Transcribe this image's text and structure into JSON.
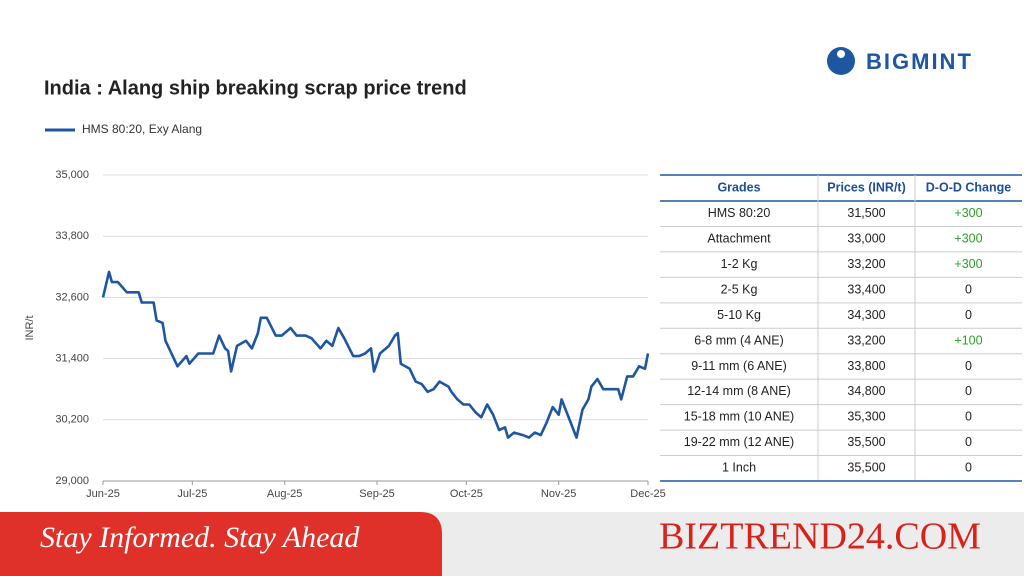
{
  "logo": "BIGMINT",
  "chart_data": {
    "type": "line",
    "title": "India : Alang ship breaking scrap price trend",
    "ylabel": "INR/t",
    "x": [
      0,
      2,
      3,
      5,
      8,
      9,
      12,
      13,
      17,
      18,
      20,
      21,
      23,
      25,
      28,
      29,
      32,
      34,
      37,
      39,
      41,
      42,
      43,
      45,
      48,
      50,
      52,
      53,
      55,
      58,
      60,
      63,
      65,
      68,
      70,
      73,
      75,
      77,
      79,
      81,
      84,
      86,
      88,
      90,
      91,
      93,
      96,
      98,
      99,
      100,
      103,
      105,
      107,
      109,
      111,
      113,
      116,
      117,
      119,
      121,
      123,
      125,
      127,
      129,
      131,
      133,
      135,
      136,
      138,
      141,
      143,
      145,
      147,
      149,
      151,
      153,
      154,
      157,
      159,
      161,
      163,
      164,
      166,
      168,
      170,
      173,
      174,
      176,
      178,
      180,
      182,
      183
    ],
    "series": [
      {
        "name": "HMS 80:20, Exy Alang",
        "color": "#1f56a0",
        "values": [
          32600,
          33100,
          32900,
          32900,
          32700,
          32700,
          32700,
          32500,
          32500,
          32150,
          32100,
          31750,
          31500,
          31250,
          31450,
          31300,
          31500,
          31500,
          31500,
          31850,
          31600,
          31550,
          31150,
          31650,
          31750,
          31600,
          31900,
          32200,
          32200,
          31850,
          31850,
          32000,
          31850,
          31850,
          31800,
          31600,
          31750,
          31650,
          32000,
          31800,
          31450,
          31450,
          31500,
          31600,
          31150,
          31500,
          31650,
          31850,
          31900,
          31300,
          31200,
          30950,
          30900,
          30750,
          30800,
          30950,
          30850,
          30750,
          30600,
          30500,
          30500,
          30350,
          30250,
          30500,
          30300,
          30000,
          30050,
          29850,
          29950,
          29900,
          29850,
          29950,
          29900,
          30150,
          30450,
          30300,
          30600,
          30150,
          29850,
          30400,
          30600,
          30850,
          31000,
          30800,
          30800,
          30800,
          30600,
          31050,
          31050,
          31250,
          31200,
          31500
        ]
      }
    ],
    "xlim": [
      0,
      183
    ],
    "xticks": [
      {
        "value": 0,
        "label": "Jun-25"
      },
      {
        "value": 30,
        "label": "Jul-25"
      },
      {
        "value": 61,
        "label": "Aug-25"
      },
      {
        "value": 92,
        "label": "Sep-25"
      },
      {
        "value": 122,
        "label": "Oct-25"
      },
      {
        "value": 153,
        "label": "Nov-25"
      },
      {
        "value": 183,
        "label": "Dec-25"
      }
    ],
    "ylim": [
      29000,
      35000
    ],
    "yticks": [
      {
        "value": 29000,
        "label": "29,000"
      },
      {
        "value": 30200,
        "label": "30,200"
      },
      {
        "value": 31400,
        "label": "31,400"
      },
      {
        "value": 32600,
        "label": "32,600"
      },
      {
        "value": 33800,
        "label": "33,800"
      },
      {
        "value": 35000,
        "label": "35,000"
      }
    ],
    "grid": true
  },
  "table": {
    "headers": [
      "Grades",
      "Prices (INR/t)",
      "D-O-D Change"
    ],
    "rows": [
      [
        "HMS 80:20",
        "31,500",
        "+300"
      ],
      [
        "Attachment",
        "33,000",
        "+300"
      ],
      [
        "1-2 Kg",
        "33,200",
        "+300"
      ],
      [
        "2-5 Kg",
        "33,400",
        "0"
      ],
      [
        "5-10 Kg",
        "34,300",
        "0"
      ],
      [
        "6-8 mm (4 ANE)",
        "33,200",
        "+100"
      ],
      [
        "9-11 mm (6 ANE)",
        "33,800",
        "0"
      ],
      [
        "12-14 mm (8 ANE)",
        "34,800",
        "0"
      ],
      [
        "15-18 mm (10 ANE)",
        "35,300",
        "0"
      ],
      [
        "19-22 mm (12 ANE)",
        "35,500",
        "0"
      ],
      [
        "1 Inch",
        "35,500",
        "0"
      ]
    ]
  },
  "banner": {
    "slogan": "Stay Informed. Stay Ahead",
    "site": "BIZTREND24.COM"
  }
}
